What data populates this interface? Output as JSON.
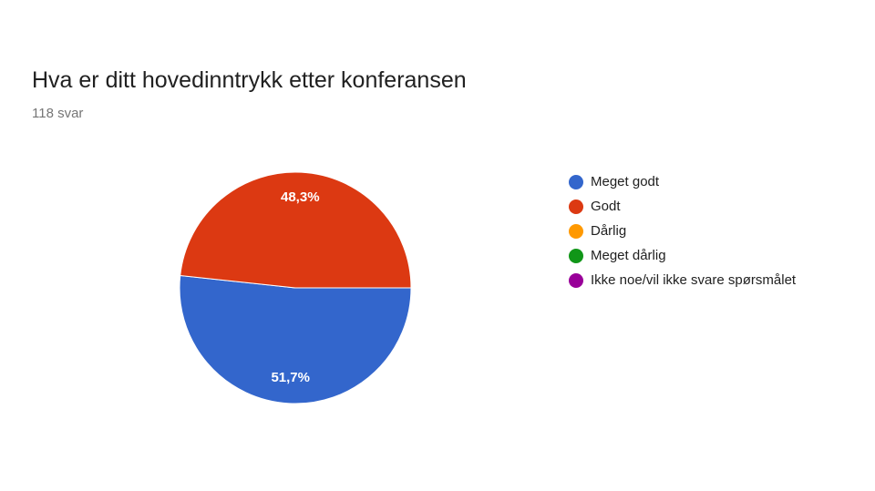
{
  "chart_data": {
    "type": "pie",
    "title": "Hva er ditt hovedinntrykk etter konferansen",
    "subtitle": "118 svar",
    "series": [
      {
        "name": "Meget godt",
        "value": 51.7,
        "label": "51,7%",
        "color": "#3366cc"
      },
      {
        "name": "Godt",
        "value": 48.3,
        "label": "48,3%",
        "color": "#dc3912"
      },
      {
        "name": "Dårlig",
        "value": 0,
        "label": "",
        "color": "#ff9900"
      },
      {
        "name": "Meget dårlig",
        "value": 0,
        "label": "",
        "color": "#109618"
      },
      {
        "name": "Ikke noe/vil ikke svare spørsmålet",
        "value": 0,
        "label": "",
        "color": "#990099"
      }
    ],
    "legend_position": "right"
  }
}
